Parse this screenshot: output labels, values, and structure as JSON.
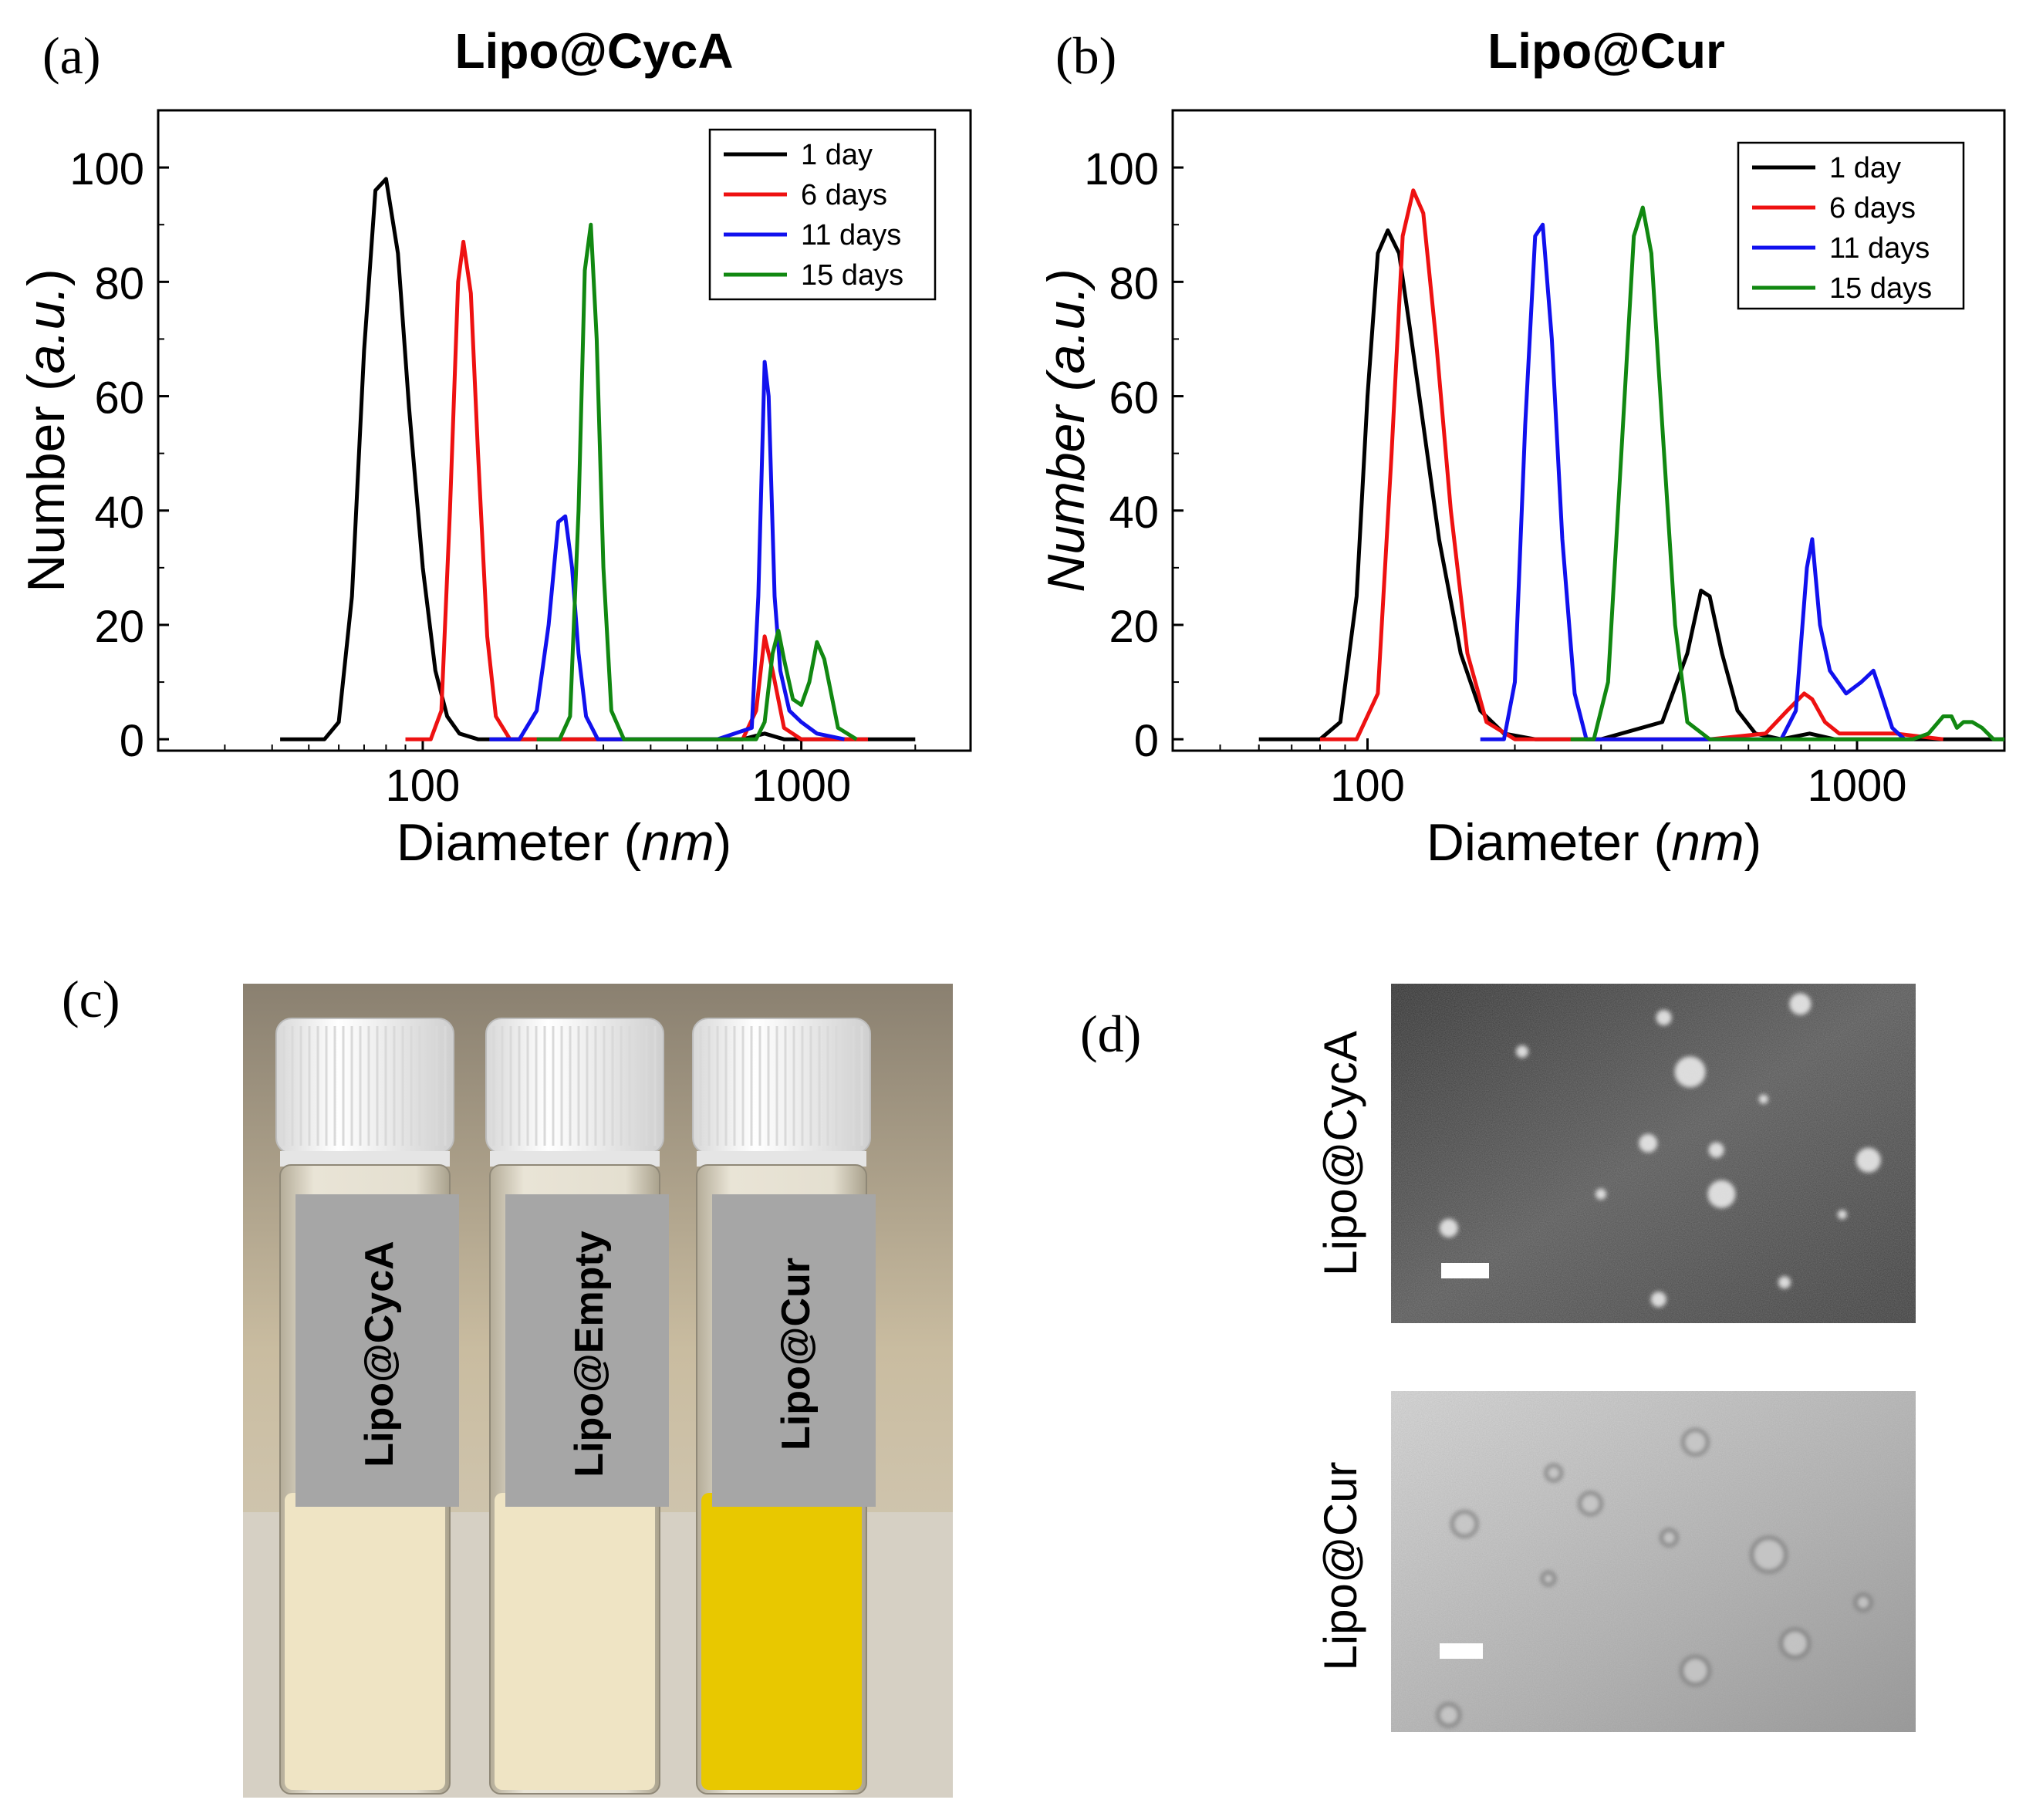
{
  "figure": {
    "panel_a_label": "(a)",
    "panel_b_label": "(b)",
    "panel_c_label": "(c)",
    "panel_d_label": "(d)"
  },
  "colors": {
    "day1": "#000000",
    "day6": "#ee1111",
    "day11": "#1111ee",
    "day15": "#118811",
    "vial_white_liquid": "#efe4c4",
    "vial_yellow_liquid": "#e8c800",
    "cap": "#f4f4f4",
    "label_gray": "#a6a6a6"
  },
  "chart_data": [
    {
      "type": "line",
      "title": "Lipo@CycA",
      "xlabel_prefix": "Diameter (",
      "xlabel_unit": "nm",
      "xlabel_suffix": ")",
      "ylabel_prefix": "Number (",
      "ylabel_unit": "a.u.",
      "ylabel_suffix": ")",
      "ylabel_italic_all": false,
      "x_scale": "log",
      "xlim": [
        20,
        2800
      ],
      "ylim": [
        -2,
        110
      ],
      "x_ticks": [
        100,
        1000
      ],
      "x_tick_labels": [
        "100",
        "1000"
      ],
      "y_ticks": [
        0,
        20,
        40,
        60,
        80,
        100
      ],
      "y_tick_labels": [
        "0",
        "20",
        "40",
        "60",
        "80",
        "100"
      ],
      "legend_position": "top-right",
      "series": [
        {
          "name": "1 day",
          "color_key": "day1",
          "x": [
            42,
            55,
            60,
            65,
            70,
            75,
            80,
            86,
            92,
            100,
            108,
            116,
            125,
            140,
            160,
            200,
            300,
            500,
            700,
            800,
            900,
            1000,
            1200,
            1500,
            2000
          ],
          "y": [
            0,
            0,
            3,
            25,
            68,
            96,
            98,
            85,
            58,
            30,
            12,
            4,
            1,
            0,
            0,
            0,
            0,
            0,
            0,
            1,
            0,
            0,
            0,
            0,
            0
          ]
        },
        {
          "name": "6 days",
          "color_key": "day6",
          "x": [
            90,
            105,
            112,
            118,
            124,
            128,
            134,
            140,
            148,
            156,
            170,
            200,
            300,
            500,
            700,
            760,
            800,
            840,
            900,
            1000,
            1200,
            1500
          ],
          "y": [
            0,
            0,
            5,
            40,
            80,
            87,
            78,
            50,
            18,
            4,
            0,
            0,
            0,
            0,
            0,
            5,
            18,
            12,
            2,
            0,
            0,
            0
          ]
        },
        {
          "name": "11 days",
          "color_key": "day11",
          "x": [
            150,
            180,
            200,
            215,
            228,
            238,
            248,
            258,
            270,
            290,
            320,
            400,
            600,
            740,
            770,
            800,
            820,
            850,
            880,
            930,
            1000,
            1100,
            1300
          ],
          "y": [
            0,
            0,
            5,
            20,
            38,
            39,
            30,
            15,
            4,
            0,
            0,
            0,
            0,
            2,
            25,
            66,
            60,
            25,
            12,
            5,
            3,
            1,
            0
          ]
        },
        {
          "name": "15 days",
          "color_key": "day15",
          "x": [
            200,
            230,
            245,
            258,
            268,
            278,
            288,
            300,
            315,
            340,
            400,
            600,
            760,
            800,
            840,
            870,
            900,
            950,
            1000,
            1050,
            1100,
            1150,
            1250,
            1400
          ],
          "y": [
            0,
            0,
            4,
            40,
            82,
            90,
            70,
            30,
            5,
            0,
            0,
            0,
            0,
            3,
            15,
            19,
            14,
            7,
            6,
            10,
            17,
            14,
            2,
            0
          ]
        }
      ]
    },
    {
      "type": "line",
      "title": "Lipo@Cur",
      "xlabel_prefix": "Diameter (",
      "xlabel_unit": "nm",
      "xlabel_suffix": ")",
      "ylabel_prefix": "Number (",
      "ylabel_unit": "a.u.",
      "ylabel_suffix": ")",
      "ylabel_italic_all": true,
      "x_scale": "log",
      "xlim": [
        40,
        2000
      ],
      "ylim": [
        -2,
        110
      ],
      "x_ticks": [
        100,
        1000
      ],
      "x_tick_labels": [
        "100",
        "1000"
      ],
      "y_ticks": [
        0,
        20,
        40,
        60,
        80,
        100
      ],
      "y_tick_labels": [
        "0",
        "20",
        "40",
        "60",
        "80",
        "100"
      ],
      "legend_position": "top-right",
      "series": [
        {
          "name": "1 day",
          "color_key": "day1",
          "x": [
            60,
            80,
            88,
            95,
            100,
            105,
            110,
            116,
            122,
            130,
            140,
            155,
            170,
            190,
            220,
            300,
            400,
            450,
            480,
            500,
            530,
            570,
            620,
            700,
            800,
            900,
            1000,
            1200,
            2000
          ],
          "y": [
            0,
            0,
            3,
            25,
            60,
            85,
            89,
            85,
            72,
            55,
            35,
            15,
            5,
            1,
            0,
            0,
            3,
            15,
            26,
            25,
            15,
            5,
            1,
            0,
            1,
            0,
            0,
            0,
            0
          ]
        },
        {
          "name": "6 days",
          "color_key": "day6",
          "x": [
            80,
            95,
            105,
            112,
            118,
            124,
            130,
            138,
            148,
            160,
            175,
            200,
            300,
            500,
            650,
            720,
            780,
            810,
            860,
            920,
            1000,
            1200,
            1500
          ],
          "y": [
            0,
            0,
            8,
            50,
            88,
            96,
            92,
            70,
            40,
            15,
            3,
            0,
            0,
            0,
            1,
            5,
            8,
            7,
            3,
            1,
            1,
            1,
            0
          ]
        },
        {
          "name": "11 days",
          "color_key": "day11",
          "x": [
            170,
            190,
            200,
            210,
            220,
            228,
            238,
            250,
            265,
            280,
            300,
            500,
            700,
            750,
            790,
            810,
            840,
            880,
            950,
            1020,
            1080,
            1120,
            1180,
            1250
          ],
          "y": [
            0,
            0,
            10,
            55,
            88,
            90,
            70,
            35,
            8,
            0,
            0,
            0,
            0,
            5,
            30,
            35,
            20,
            12,
            8,
            10,
            12,
            8,
            2,
            0
          ]
        },
        {
          "name": "15 days",
          "color_key": "day15",
          "x": [
            260,
            290,
            310,
            330,
            350,
            365,
            380,
            400,
            425,
            450,
            500,
            800,
            1300,
            1400,
            1500,
            1560,
            1600,
            1650,
            1720,
            1800,
            1900,
            2000
          ],
          "y": [
            0,
            0,
            10,
            50,
            88,
            93,
            85,
            55,
            20,
            3,
            0,
            0,
            0,
            1,
            4,
            4,
            2,
            3,
            3,
            2,
            0,
            0
          ]
        }
      ]
    }
  ],
  "panel_c": {
    "vials": [
      {
        "label": "Lipo@CycA",
        "liquid_color_key": "vial_white_liquid"
      },
      {
        "label": "Lipo@Empty",
        "liquid_color_key": "vial_white_liquid"
      },
      {
        "label": "Lipo@Cur",
        "liquid_color_key": "vial_yellow_liquid"
      }
    ]
  },
  "panel_d": {
    "images": [
      {
        "label": "Lipo@CycA",
        "tone": "dark"
      },
      {
        "label": "Lipo@Cur",
        "tone": "light"
      }
    ]
  }
}
